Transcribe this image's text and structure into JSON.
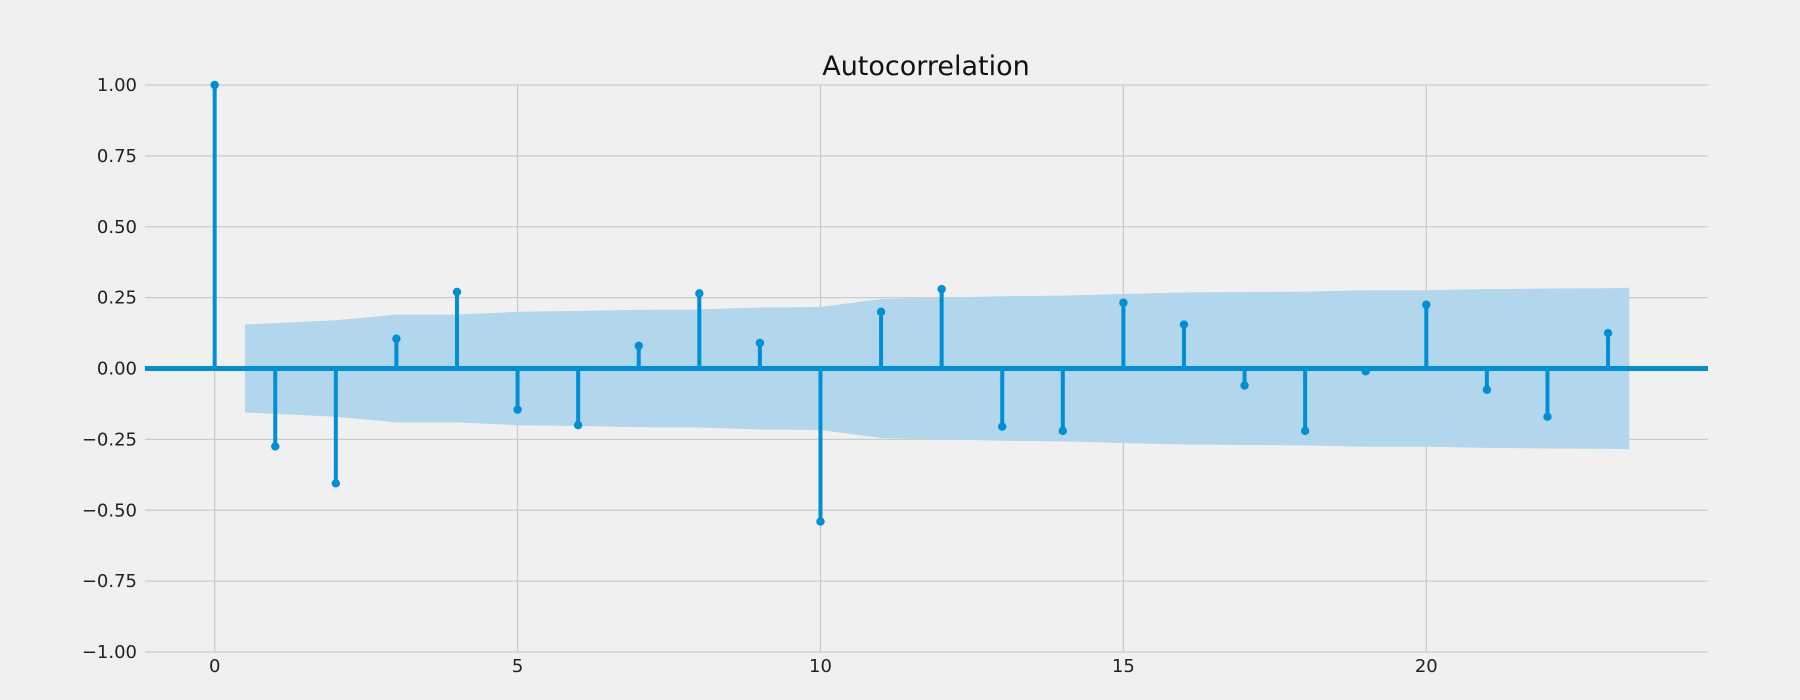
{
  "chart_data": {
    "type": "stem",
    "title": "Autocorrelation",
    "xlabel": "",
    "ylabel": "",
    "xlim": [
      -1.15,
      24.65
    ],
    "ylim": [
      -1.0,
      1.0
    ],
    "xticks": [
      0,
      5,
      10,
      15,
      20
    ],
    "xtick_labels": [
      "0",
      "5",
      "10",
      "15",
      "20"
    ],
    "yticks": [
      1.0,
      0.75,
      0.5,
      0.25,
      0.0,
      -0.25,
      -0.5,
      -0.75,
      -1.0
    ],
    "ytick_labels": [
      "1.00",
      "0.75",
      "0.50",
      "0.25",
      "0.00",
      "−0.25",
      "−0.50",
      "−0.75",
      "−1.00"
    ],
    "grid": true,
    "lags": [
      0,
      1,
      2,
      3,
      4,
      5,
      6,
      7,
      8,
      9,
      10,
      11,
      12,
      13,
      14,
      15,
      16,
      17,
      18,
      19,
      20,
      21,
      22,
      23
    ],
    "values": [
      1.0,
      -0.275,
      -0.405,
      0.105,
      0.27,
      -0.145,
      -0.2,
      0.08,
      0.265,
      0.09,
      -0.54,
      0.2,
      0.28,
      -0.205,
      -0.22,
      0.232,
      0.155,
      -0.06,
      -0.22,
      -0.01,
      0.225,
      -0.075,
      -0.17,
      0.125
    ],
    "confidence_band": {
      "x": [
        0.5,
        1,
        2,
        3,
        4,
        5,
        6,
        7,
        8,
        9,
        10,
        11,
        12,
        13,
        14,
        15,
        16,
        17,
        18,
        19,
        20,
        21,
        22,
        23,
        23.35
      ],
      "upper": [
        0.155,
        0.16,
        0.17,
        0.19,
        0.19,
        0.2,
        0.203,
        0.207,
        0.208,
        0.215,
        0.217,
        0.245,
        0.25,
        0.255,
        0.257,
        0.263,
        0.268,
        0.27,
        0.271,
        0.276,
        0.276,
        0.28,
        0.282,
        0.283,
        0.285
      ]
    },
    "colors": {
      "stem": "#008fd5",
      "band": "#aed4ea",
      "grid": "#cbcbcb",
      "background": "#f0f0f0"
    }
  }
}
